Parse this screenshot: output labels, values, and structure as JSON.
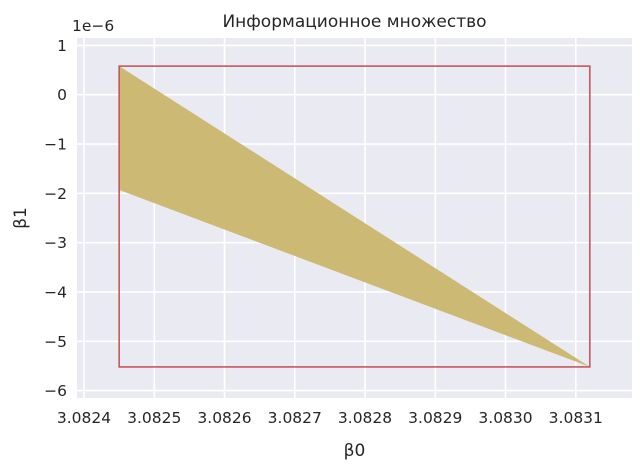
{
  "chart_data": {
    "type": "area",
    "title": "Информационное множество",
    "xlabel": "β0",
    "ylabel": "β1",
    "y_offset_label": "1e−6",
    "y_scale": 1e-06,
    "xlim": [
      3.08239,
      3.08318
    ],
    "ylim": [
      -6.15,
      1.15
    ],
    "x_ticks": [
      3.0824,
      3.0825,
      3.0826,
      3.0827,
      3.0828,
      3.0829,
      3.083,
      3.0831
    ],
    "x_tick_labels": [
      "3.0824",
      "3.0825",
      "3.0826",
      "3.0827",
      "3.0828",
      "3.0829",
      "3.0830",
      "3.0831"
    ],
    "y_ticks": [
      1,
      0,
      -1,
      -2,
      -3,
      -4,
      -5,
      -6
    ],
    "y_tick_labels": [
      "1",
      "0",
      "−1",
      "−2",
      "−3",
      "−4",
      "−5",
      "−6"
    ],
    "grid": true,
    "background": "#eaeaf2",
    "series": [
      {
        "kind": "polygon",
        "color": "#ccb974",
        "points": [
          [
            3.08245,
            0.58
          ],
          [
            3.08312,
            -5.52
          ],
          [
            3.08245,
            -1.93
          ]
        ]
      },
      {
        "kind": "rectangle",
        "color": "#c44e52",
        "x": [
          3.08245,
          3.08312
        ],
        "y": [
          -5.52,
          0.58
        ]
      }
    ]
  }
}
